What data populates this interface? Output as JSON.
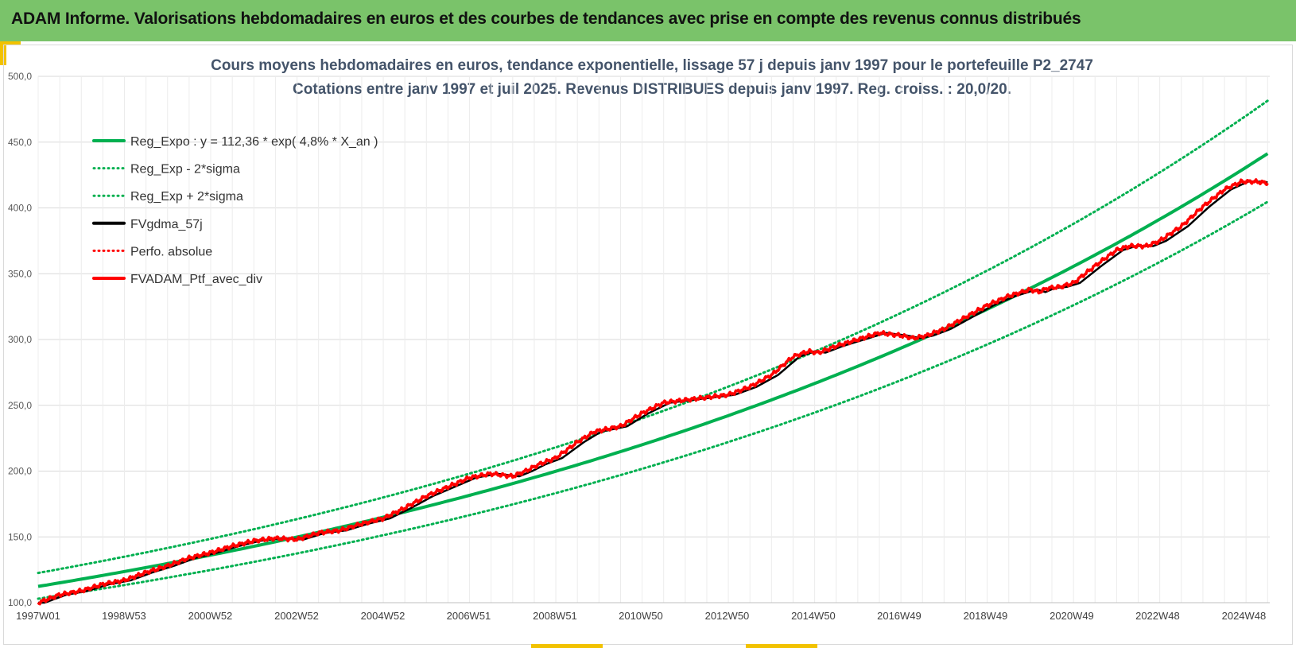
{
  "banner": {
    "title": "ADAM Informe. Valorisations hebdomadaires en euros et des courbes de tendances avec prise en compte des revenus connus distribués"
  },
  "colors": {
    "banner": "#7ac36a",
    "accent": "#f2c200",
    "trend": "#00b050",
    "smooth": "#000000",
    "portfolio": "#ff0000",
    "title_text": "#44546a"
  },
  "chart_data": {
    "type": "line",
    "title_line1": "Cours moyens hebdomadaires  en euros, tendance exponentielle, lissage 57 j depuis janv 1997 pour le portefeuille P2_2747",
    "title_line2": "Cotations  entre janv 1997 et juil 2025. Revenus DISTRIBUES depuis janv 1997. Reg. croiss. : 20,0/20.",
    "x_ticks": [
      "1997W01",
      "1998W53",
      "2000W52",
      "2002W52",
      "2004W52",
      "2006W51",
      "2008W51",
      "2010W50",
      "2012W50",
      "2014W50",
      "2016W49",
      "2018W49",
      "2020W49",
      "2022W48",
      "2024W48"
    ],
    "x_tick_years": [
      1997.0,
      1998.99,
      2000.99,
      2002.99,
      2004.99,
      2006.98,
      2008.98,
      2010.97,
      2012.97,
      2014.97,
      2016.96,
      2018.96,
      2020.96,
      2022.95,
      2024.95
    ],
    "xlim": [
      1997.0,
      2025.55
    ],
    "ylim": [
      100,
      500
    ],
    "y_ticks": [
      "100,0",
      "150,0",
      "200,0",
      "250,0",
      "300,0",
      "350,0",
      "400,0",
      "450,0",
      "500,0"
    ],
    "y_tick_values": [
      100,
      150,
      200,
      250,
      300,
      350,
      400,
      450,
      500
    ],
    "grid": "on",
    "legend_position": "top-left",
    "regression": {
      "a": 112.36,
      "rate": 0.048,
      "start_year": 1997.0
    },
    "sigma_band": {
      "lower_factor": 0.917,
      "upper_factor": 1.091
    },
    "series": [
      {
        "name": "Reg_Expo : y = 112,36 * exp( 4,8% *  X_an )",
        "style": "solid",
        "color": "#00b050",
        "kind": "regression"
      },
      {
        "name": "Reg_Exp - 2*sigma",
        "style": "dotted",
        "color": "#00b050",
        "kind": "lower"
      },
      {
        "name": "Reg_Exp + 2*sigma",
        "style": "dotted",
        "color": "#00b050",
        "kind": "upper"
      },
      {
        "name": "FVgdma_57j",
        "style": "solid",
        "color": "#000000",
        "kind": "smooth"
      },
      {
        "name": "Perfo. absolue",
        "style": "dotted",
        "color": "#ff0000",
        "kind": "none"
      },
      {
        "name": "FVADAM_Ptf_avec_div",
        "style": "solid",
        "color": "#ff0000",
        "kind": "portfolio"
      }
    ],
    "portfolio_points": {
      "x": [
        1997.0,
        1997.5,
        1998.0,
        1998.5,
        1999.0,
        1999.5,
        2000.0,
        2000.5,
        2001.0,
        2001.5,
        2002.0,
        2002.5,
        2003.0,
        2003.5,
        2004.0,
        2004.5,
        2005.0,
        2005.5,
        2006.0,
        2006.5,
        2007.0,
        2007.5,
        2008.0,
        2008.3,
        2008.6,
        2009.0,
        2009.5,
        2009.9,
        2010.2,
        2010.5,
        2011.0,
        2011.5,
        2012.0,
        2012.5,
        2013.0,
        2013.5,
        2014.0,
        2014.5,
        2014.85,
        2015.1,
        2015.5,
        2016.0,
        2016.5,
        2017.0,
        2017.3,
        2017.6,
        2018.0,
        2018.5,
        2019.0,
        2019.5,
        2020.0,
        2020.2,
        2020.4,
        2020.7,
        2021.0,
        2021.5,
        2022.0,
        2022.3,
        2022.7,
        2023.0,
        2023.5,
        2024.0,
        2024.5,
        2024.9,
        2025.2,
        2025.5
      ],
      "y": [
        100,
        106,
        109,
        114,
        117,
        123,
        128,
        134,
        138,
        143,
        147,
        149,
        148,
        153,
        155,
        160,
        164,
        172,
        181,
        188,
        195,
        198,
        196,
        200,
        205,
        210,
        222,
        230,
        232,
        234,
        244,
        252,
        254,
        256,
        258,
        264,
        273,
        287,
        291,
        290,
        295,
        300,
        305,
        303,
        301,
        303,
        308,
        317,
        326,
        333,
        338,
        336,
        339,
        340,
        343,
        356,
        368,
        371,
        371,
        375,
        386,
        401,
        414,
        420,
        420,
        419
      ]
    },
    "smooth_lag_years": 0.3,
    "noise_amplitude": 1.6
  }
}
